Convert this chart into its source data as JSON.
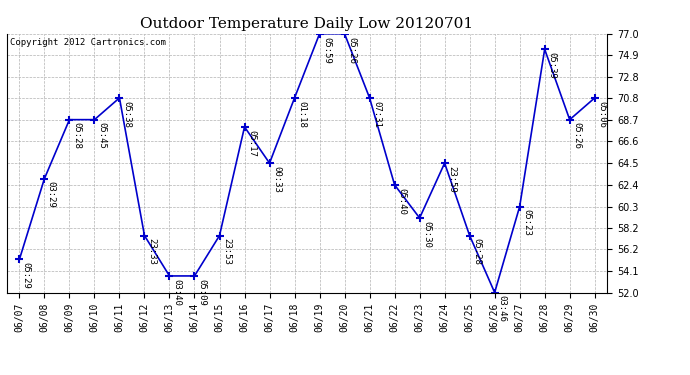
{
  "title": "Outdoor Temperature Daily Low 20120701",
  "copyright": "Copyright 2012 Cartronics.com",
  "ylim": [
    52.0,
    77.0
  ],
  "yticks": [
    52.0,
    54.1,
    56.2,
    58.2,
    60.3,
    62.4,
    64.5,
    66.6,
    68.7,
    70.8,
    72.8,
    74.9,
    77.0
  ],
  "dates": [
    "06/07",
    "06/08",
    "06/09",
    "06/10",
    "06/11",
    "06/12",
    "06/13",
    "06/14",
    "06/15",
    "06/16",
    "06/17",
    "06/18",
    "06/19",
    "06/20",
    "06/21",
    "06/22",
    "06/23",
    "06/24",
    "06/25",
    "06/26",
    "06/27",
    "06/28",
    "06/29",
    "06/30"
  ],
  "values": [
    55.2,
    63.0,
    68.7,
    68.7,
    70.8,
    57.5,
    53.6,
    53.6,
    57.5,
    68.0,
    64.5,
    70.8,
    77.0,
    77.0,
    70.8,
    62.4,
    59.2,
    64.5,
    57.5,
    52.0,
    60.3,
    75.5,
    68.7,
    70.8
  ],
  "labels": [
    "05:29",
    "03:29",
    "05:28",
    "05:45",
    "05:38",
    "23:33",
    "03:40",
    "05:09",
    "23:53",
    "05:17",
    "00:33",
    "01:18",
    "05:59",
    "05:26",
    "07:31",
    "05:40",
    "05:30",
    "23:59",
    "05:28",
    "03:46",
    "05:23",
    "05:39",
    "05:26",
    "05:06"
  ],
  "line_color": "#0000cc",
  "bg_color": "#ffffff",
  "grid_color": "#aaaaaa",
  "title_fontsize": 11,
  "label_fontsize": 6.5,
  "tick_fontsize": 7,
  "copyright_fontsize": 6.5
}
